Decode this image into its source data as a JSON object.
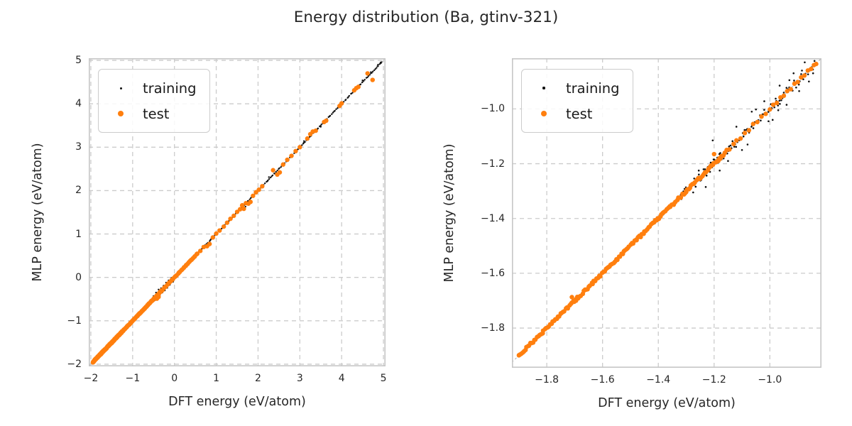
{
  "title": "Energy distribution (Ba, gtinv-321)",
  "colors": {
    "training": "#111111",
    "test": "#ff7f0e",
    "grid": "#cccccc",
    "spine": "#c6c6c6",
    "identity": "#b0b0b0",
    "text": "#262626"
  },
  "legend": {
    "items": [
      {
        "label": "training",
        "series": "training"
      },
      {
        "label": "test",
        "series": "test"
      }
    ]
  },
  "chart_data": [
    {
      "type": "scatter",
      "xlabel": "DFT energy (eV/atom)",
      "ylabel": "MLP energy (eV/atom)",
      "xlim": [
        -2.05,
        5.05
      ],
      "ylim": [
        -2.05,
        5.05
      ],
      "xticks": {
        "values": [
          -2,
          -1,
          0,
          1,
          2,
          3,
          4,
          5
        ],
        "labels": [
          "−2",
          "−1",
          "0",
          "1",
          "2",
          "3",
          "4",
          "5"
        ]
      },
      "yticks": {
        "values": [
          -2,
          -1,
          0,
          1,
          2,
          3,
          4,
          5
        ],
        "labels": [
          "−2",
          "−1",
          "0",
          "1",
          "2",
          "3",
          "4",
          "5"
        ]
      },
      "grid": "dashed",
      "identity_line": true,
      "legend_position": "upper-left",
      "series": [
        {
          "name": "training",
          "color_key": "training",
          "marker_px": 2.4,
          "diagonal_bands": [
            {
              "x0": -1.93,
              "x1": 4.96,
              "n": 260,
              "spread": 0.008
            }
          ],
          "points": [
            [
              -0.5,
              -0.43
            ],
            [
              -0.47,
              -0.53
            ],
            [
              -0.44,
              -0.35
            ],
            [
              -0.41,
              -0.47
            ],
            [
              -0.38,
              -0.28
            ],
            [
              -0.35,
              -0.42
            ],
            [
              -0.32,
              -0.25
            ],
            [
              -0.29,
              -0.35
            ],
            [
              -0.26,
              -0.19
            ],
            [
              -0.23,
              -0.3
            ],
            [
              -0.2,
              -0.12
            ],
            [
              -0.17,
              -0.24
            ],
            [
              -0.14,
              -0.07
            ],
            [
              -0.11,
              -0.17
            ],
            [
              -0.07,
              -0.01
            ],
            [
              -0.03,
              -0.1
            ],
            [
              0.01,
              0.04
            ],
            [
              0.06,
              0.01
            ],
            [
              0.11,
              0.13
            ],
            [
              1.63,
              1.69
            ],
            [
              1.7,
              1.63
            ],
            [
              2.26,
              2.31
            ],
            [
              2.44,
              2.39
            ],
            [
              3.1,
              3.14
            ],
            [
              3.5,
              3.47
            ],
            [
              4.5,
              4.54
            ],
            [
              4.7,
              4.73
            ],
            [
              4.87,
              4.9
            ],
            [
              4.93,
              4.95
            ]
          ]
        },
        {
          "name": "test",
          "color_key": "test",
          "marker_px": 6.4,
          "diagonal_bands": [
            {
              "x0": -1.95,
              "x1": -1.25,
              "n": 150,
              "spread": 0.013
            },
            {
              "x0": -1.25,
              "x1": -0.28,
              "n": 90,
              "spread": 0.008
            },
            {
              "x0": -0.25,
              "x1": 0.55,
              "n": 32,
              "spread": 0.006
            }
          ],
          "points": [
            [
              -0.42,
              -0.49
            ],
            [
              -0.38,
              -0.45
            ],
            [
              0.62,
              0.61
            ],
            [
              0.7,
              0.7
            ],
            [
              0.78,
              0.72
            ],
            [
              0.84,
              0.77
            ],
            [
              0.92,
              0.92
            ],
            [
              1.0,
              1.01
            ],
            [
              1.08,
              1.08
            ],
            [
              1.18,
              1.17
            ],
            [
              1.26,
              1.26
            ],
            [
              1.34,
              1.35
            ],
            [
              1.42,
              1.42
            ],
            [
              1.5,
              1.51
            ],
            [
              1.57,
              1.57
            ],
            [
              1.62,
              1.66
            ],
            [
              1.66,
              1.58
            ],
            [
              1.71,
              1.71
            ],
            [
              1.77,
              1.7
            ],
            [
              1.82,
              1.74
            ],
            [
              1.88,
              1.88
            ],
            [
              1.95,
              1.96
            ],
            [
              2.02,
              2.02
            ],
            [
              2.1,
              2.1
            ],
            [
              2.36,
              2.47
            ],
            [
              2.46,
              2.37
            ],
            [
              2.52,
              2.42
            ],
            [
              2.6,
              2.6
            ],
            [
              2.7,
              2.71
            ],
            [
              2.8,
              2.8
            ],
            [
              2.9,
              2.91
            ],
            [
              3.0,
              3.0
            ],
            [
              3.18,
              3.2
            ],
            [
              3.25,
              3.3
            ],
            [
              3.31,
              3.36
            ],
            [
              3.38,
              3.38
            ],
            [
              3.58,
              3.58
            ],
            [
              3.63,
              3.61
            ],
            [
              3.95,
              3.95
            ],
            [
              4.0,
              4.01
            ],
            [
              4.3,
              4.31
            ],
            [
              4.35,
              4.36
            ],
            [
              4.4,
              4.39
            ],
            [
              4.62,
              4.7
            ],
            [
              4.74,
              4.55
            ]
          ]
        }
      ]
    },
    {
      "type": "scatter",
      "xlabel": "DFT energy (eV/atom)",
      "ylabel": "MLP energy (eV/atom)",
      "xlim": [
        -1.925,
        -0.815
      ],
      "ylim": [
        -1.945,
        -0.815
      ],
      "xticks": {
        "values": [
          -1.8,
          -1.6,
          -1.4,
          -1.2,
          -1.0
        ],
        "labels": [
          "−1.8",
          "−1.6",
          "−1.4",
          "−1.2",
          "−1.0"
        ]
      },
      "yticks": {
        "values": [
          -1.0,
          -1.2,
          -1.4,
          -1.6,
          -1.8
        ],
        "labels": [
          "−1.0",
          "−1.2",
          "−1.4",
          "−1.6",
          "−1.8"
        ]
      },
      "grid": "dashed",
      "identity_line": true,
      "legend_position": "upper-left",
      "series": [
        {
          "name": "training",
          "color_key": "training",
          "marker_px": 2.6,
          "diagonal_bands": [
            {
              "x0": -1.885,
              "x1": -1.32,
              "n": 130,
              "spread": 0.0035
            },
            {
              "x0": -1.32,
              "x1": -0.845,
              "n": 110,
              "spread": 0.018
            }
          ],
          "points": [
            [
              -1.205,
              -1.115
            ],
            [
              -1.18,
              -1.225
            ],
            [
              -1.23,
              -1.285
            ],
            [
              -1.15,
              -1.19
            ],
            [
              -1.12,
              -1.065
            ],
            [
              -1.08,
              -1.13
            ],
            [
              -1.05,
              -1.002
            ],
            [
              -1.02,
              -0.972
            ],
            [
              -0.99,
              -1.04
            ],
            [
              -0.965,
              -0.915
            ],
            [
              -0.94,
              -0.985
            ],
            [
              -0.915,
              -0.87
            ],
            [
              -0.895,
              -0.935
            ],
            [
              -0.875,
              -0.83
            ],
            [
              -0.86,
              -0.9
            ],
            [
              -1.065,
              -1.01
            ],
            [
              -1.1,
              -1.15
            ],
            [
              -1.255,
              -1.225
            ],
            [
              -1.275,
              -1.305
            ],
            [
              -0.93,
              -0.895
            ],
            [
              -0.97,
              -1.005
            ],
            [
              -1.005,
              -1.045
            ],
            [
              -0.885,
              -0.86
            ],
            [
              -0.845,
              -0.87
            ],
            [
              -0.84,
              -0.825
            ]
          ]
        },
        {
          "name": "test",
          "color_key": "test",
          "marker_px": 6.4,
          "diagonal_bands": [
            {
              "x0": -1.9,
              "x1": -1.3,
              "n": 130,
              "spread": 0.005
            },
            {
              "x0": -1.3,
              "x1": -1.16,
              "n": 32,
              "spread": 0.004
            }
          ],
          "points": [
            [
              -1.71,
              -1.687
            ],
            [
              -1.695,
              -1.7
            ],
            [
              -1.2,
              -1.165
            ],
            [
              -1.185,
              -1.19
            ],
            [
              -1.17,
              -1.172
            ],
            [
              -1.155,
              -1.15
            ],
            [
              -1.145,
              -1.148
            ],
            [
              -1.13,
              -1.128
            ],
            [
              -1.12,
              -1.115
            ],
            [
              -1.105,
              -1.108
            ],
            [
              -1.09,
              -1.088
            ],
            [
              -1.075,
              -1.078
            ],
            [
              -1.06,
              -1.055
            ],
            [
              -1.045,
              -1.048
            ],
            [
              -1.03,
              -1.028
            ],
            [
              -1.015,
              -1.018
            ],
            [
              -1.0,
              -1.002
            ],
            [
              -0.988,
              -0.985
            ],
            [
              -0.975,
              -0.978
            ],
            [
              -0.962,
              -0.958
            ],
            [
              -0.95,
              -0.952
            ],
            [
              -0.938,
              -0.935
            ],
            [
              -0.925,
              -0.928
            ],
            [
              -0.912,
              -0.908
            ],
            [
              -0.9,
              -0.902
            ],
            [
              -0.888,
              -0.885
            ],
            [
              -0.876,
              -0.878
            ],
            [
              -0.864,
              -0.86
            ],
            [
              -0.852,
              -0.854
            ],
            [
              -0.842,
              -0.84
            ],
            [
              -0.834,
              -0.836
            ]
          ]
        }
      ]
    }
  ]
}
